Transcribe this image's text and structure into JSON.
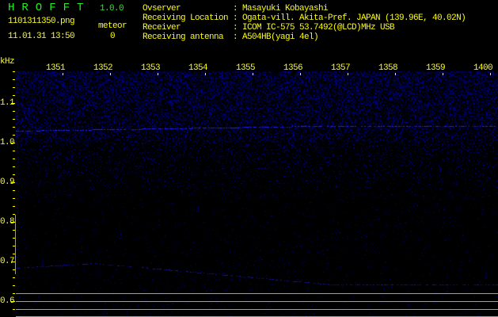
{
  "header": {
    "app_title": "HROFFT",
    "version": "1.0.0",
    "filename": "1101311350.png",
    "datetime": "11.01.31 13:50",
    "meteor_label": "meteor",
    "meteor_count": "0",
    "info": [
      {
        "label": "Ovserver",
        "value": "Masayuki Kobayashi"
      },
      {
        "label": "Receiving Location",
        "value": "Ogata-vill. Akita-Pref. JAPAN (139.96E, 40.02N)"
      },
      {
        "label": "Receiver",
        "value": "ICOM IC-575 53.7492(@LCD)MHz USB"
      },
      {
        "label": "Receiving antenna",
        "value": "A504HB(yagi 4el)"
      }
    ]
  },
  "spectrogram": {
    "y_unit": "kHz",
    "y_ticks": [
      "1.1",
      "1.0",
      "0.9",
      "0.8",
      "0.7",
      "0.6"
    ],
    "x_ticks": [
      "1351",
      "1352",
      "1353",
      "1354",
      "1355",
      "1356",
      "1357",
      "1358",
      "1359",
      "1400"
    ],
    "colors": {
      "text": "#ffff00",
      "signal": "#2020ff",
      "reference_lines": "#a0a0a0",
      "marker": "#00e0e0"
    }
  }
}
